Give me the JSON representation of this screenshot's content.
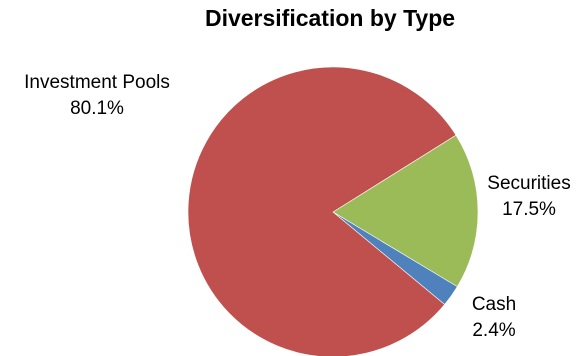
{
  "chart_data": {
    "type": "pie",
    "title": "Diversification by Type",
    "slices": [
      {
        "name": "Investment Pools",
        "value": 80.1,
        "label": "80.1%",
        "color": "#c0504d"
      },
      {
        "name": "Securities",
        "value": 17.5,
        "label": "17.5%",
        "color": "#9bbb59"
      },
      {
        "name": "Cash",
        "value": 2.4,
        "label": "2.4%",
        "color": "#4f81bd"
      }
    ]
  }
}
